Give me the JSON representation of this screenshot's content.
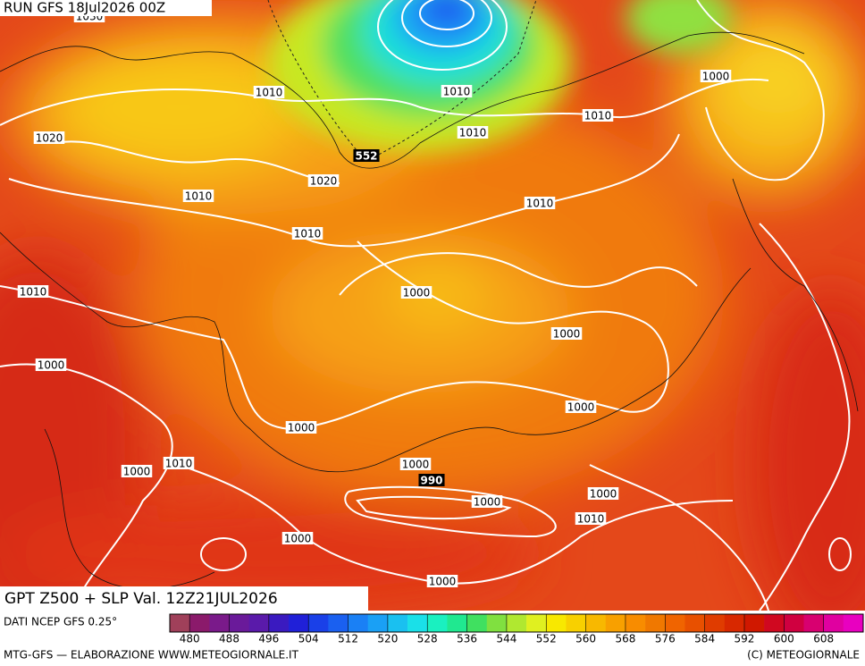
{
  "header": {
    "run": "RUN GFS 18Jul2026 00Z"
  },
  "title": "GPT Z500 + SLP Val. 12Z21JUL2026",
  "source": "DATI NCEP GFS 0.25°",
  "footer": {
    "left": "MTG-GFS — ELABORAZIONE WWW.METEOGIORNALE.IT",
    "right": "(C) METEOGIORNALE"
  },
  "contour_labels": [
    "1030",
    "1010",
    "1010",
    "1000",
    "1020",
    "1010",
    "1010",
    "552",
    "1020",
    "1010",
    "1010",
    "1010",
    "1010",
    "1000",
    "1000",
    "1000",
    "1000",
    "1000",
    "1000",
    "990",
    "1010",
    "1000",
    "1000",
    "1000",
    "1010",
    "1000",
    "1000"
  ],
  "colorbar": {
    "min": 476,
    "step": 4,
    "colors": [
      "#a0405a",
      "#8b1a6b",
      "#7a1a8a",
      "#6a1a9a",
      "#5a1aaa",
      "#3a1ac0",
      "#2020d8",
      "#1a40e8",
      "#1a60f0",
      "#1a80f5",
      "#1aa0f5",
      "#1ac0f0",
      "#1ae0e8",
      "#1af0c0",
      "#20e890",
      "#40e060",
      "#80e040",
      "#b0e830",
      "#e0f020",
      "#f8e800",
      "#f8d000",
      "#f8b800",
      "#f8a000",
      "#f88c00",
      "#f07800",
      "#f06400",
      "#e85000",
      "#e03c00",
      "#d82800",
      "#d01800",
      "#d00820",
      "#d00040",
      "#d80070",
      "#e000a0",
      "#e800c0"
    ],
    "ticks": [
      480,
      488,
      496,
      504,
      512,
      520,
      528,
      536,
      544,
      552,
      560,
      568,
      576,
      584,
      592,
      600,
      608
    ]
  }
}
